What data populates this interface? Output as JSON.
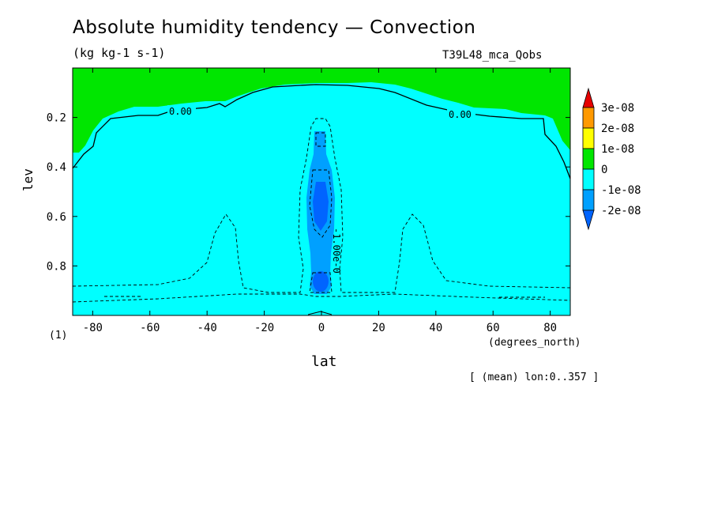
{
  "chart_data": {
    "type": "contour",
    "title": "Absolute humidity tendency — Convection",
    "units": "(kg kg-1 s-1)",
    "run_label": "T39L48_mca_Qobs",
    "xlabel": "lat",
    "x_unit_label": "(degrees_north)",
    "ylabel": "lev",
    "corner_label": "(1)",
    "mean_label": "[ (mean) lon:0..357 ]",
    "x_ticks": [
      "-80",
      "-60",
      "-40",
      "-20",
      "0",
      "20",
      "40",
      "60",
      "80"
    ],
    "x_tick_values": [
      -80,
      -60,
      -40,
      -20,
      0,
      20,
      40,
      60,
      80
    ],
    "y_ticks": [
      "0.2",
      "0.4",
      "0.6",
      "0.8"
    ],
    "y_tick_values": [
      0.2,
      0.4,
      0.6,
      0.8
    ],
    "xlim": [
      -87,
      87
    ],
    "ylim": [
      0.0,
      1.0
    ],
    "y_inverted": true,
    "contour_labels": [
      "0.00",
      "0.00",
      "-1.00e-0"
    ],
    "colorbar": {
      "levels": [
        "3e-08",
        "2e-08",
        "1e-08",
        "0",
        "-1e-08",
        "-2e-08"
      ],
      "colors": [
        "#e60000",
        "#ff9900",
        "#ffff00",
        "#00e600",
        "#00ffff",
        "#00a0ff",
        "#0064ff"
      ]
    }
  }
}
